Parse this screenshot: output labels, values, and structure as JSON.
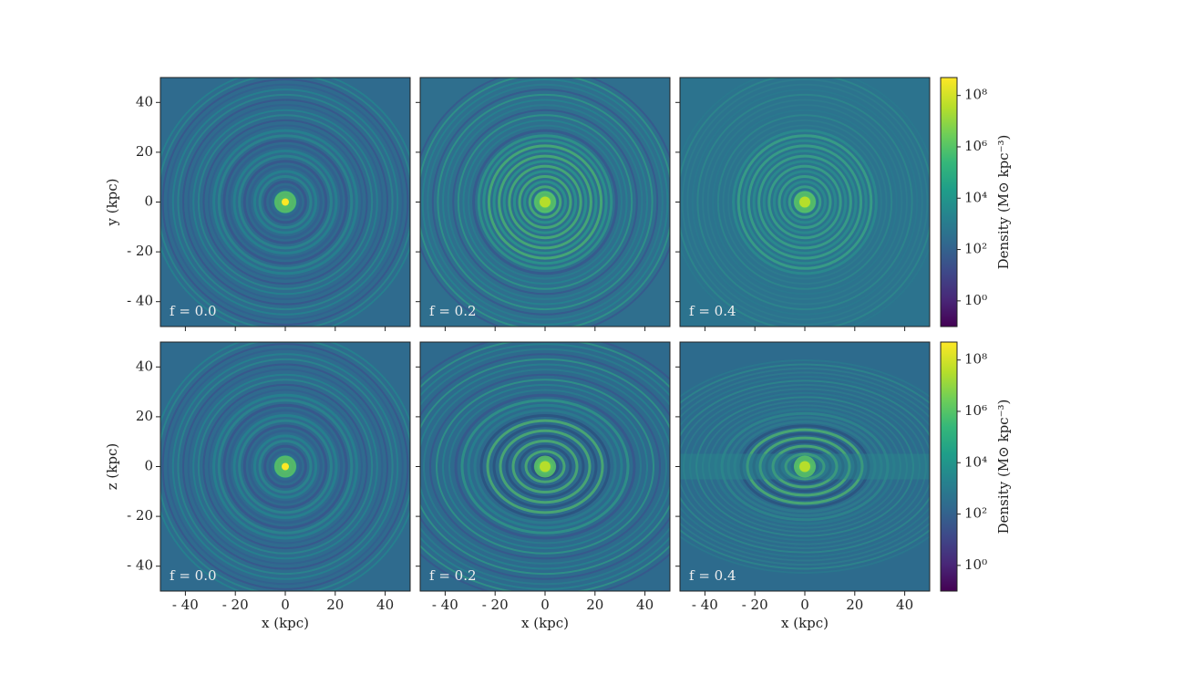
{
  "chart_data": [
    {
      "type": "heatmap",
      "annotation": "f = 0.0",
      "ylabel": "y (kpc)",
      "colormap": "viridis",
      "xlim": [
        -50,
        50
      ],
      "ylim": [
        -50,
        50
      ],
      "xticks": [
        -40,
        -20,
        0,
        20,
        40
      ],
      "yticks": [
        {
          "value": -40,
          "label": "- 40"
        },
        {
          "value": -20,
          "label": "- 20"
        },
        0,
        20,
        40
      ]
    },
    {
      "type": "heatmap",
      "annotation": "f = 0.2",
      "colormap": "viridis",
      "xlim": [
        -50,
        50
      ],
      "ylim": [
        -50,
        50
      ],
      "xticks": [
        -40,
        -20,
        0,
        20,
        40
      ],
      "yticks": [
        -40,
        -20,
        0,
        20,
        40
      ]
    },
    {
      "type": "heatmap",
      "annotation": "f = 0.4",
      "colormap": "viridis",
      "xlim": [
        -50,
        50
      ],
      "ylim": [
        -50,
        50
      ],
      "xticks": [
        -40,
        -20,
        0,
        20,
        40
      ],
      "yticks": [
        -40,
        -20,
        0,
        20,
        40
      ]
    },
    {
      "type": "heatmap",
      "annotation": "f = 0.0",
      "xlabel": "x (kpc)",
      "ylabel": "z (kpc)",
      "colormap": "viridis",
      "xlim": [
        -50,
        50
      ],
      "ylim": [
        -50,
        50
      ],
      "xticks": [
        {
          "value": -40,
          "label": "- 40"
        },
        {
          "value": -20,
          "label": "- 20"
        },
        0,
        20,
        40
      ],
      "yticks": [
        {
          "value": -40,
          "label": "- 40"
        },
        {
          "value": -20,
          "label": "- 20"
        },
        0,
        20,
        40
      ]
    },
    {
      "type": "heatmap",
      "annotation": "f = 0.2",
      "xlabel": "x (kpc)",
      "colormap": "viridis",
      "xlim": [
        -50,
        50
      ],
      "ylim": [
        -50,
        50
      ],
      "xticks": [
        {
          "value": -40,
          "label": "- 40"
        },
        {
          "value": -20,
          "label": "- 20"
        },
        0,
        20,
        40
      ],
      "yticks": [
        -40,
        -20,
        0,
        20,
        40
      ]
    },
    {
      "type": "heatmap",
      "annotation": "f = 0.4",
      "xlabel": "x (kpc)",
      "colormap": "viridis",
      "xlim": [
        -50,
        50
      ],
      "ylim": [
        -50,
        50
      ],
      "xticks": [
        {
          "value": -40,
          "label": "- 40"
        },
        {
          "value": -20,
          "label": "- 20"
        },
        0,
        20,
        40
      ],
      "yticks": [
        -40,
        -20,
        0,
        20,
        40
      ]
    },
    {
      "type": "colorbar",
      "label": "Density (M⊙ kpc⁻³)",
      "log_scale": true,
      "colormap": "viridis",
      "ylim": [
        0.1,
        500000000
      ],
      "yticks": [
        {
          "value": 1,
          "label": "10⁰"
        },
        {
          "value": 100,
          "label": "10²"
        },
        {
          "value": 10000,
          "label": "10⁴"
        },
        {
          "value": 1000000,
          "label": "10⁶"
        },
        {
          "value": 100000000,
          "label": "10⁸"
        }
      ]
    },
    {
      "type": "colorbar",
      "label": "Density (M⊙ kpc⁻³)",
      "log_scale": true,
      "colormap": "viridis",
      "ylim": [
        0.1,
        500000000
      ],
      "yticks": [
        {
          "value": 1,
          "label": "10⁰"
        },
        {
          "value": 100,
          "label": "10²"
        },
        {
          "value": 10000,
          "label": "10⁴"
        },
        {
          "value": 1000000,
          "label": "10⁶"
        },
        {
          "value": 100000000,
          "label": "10⁸"
        }
      ]
    }
  ]
}
